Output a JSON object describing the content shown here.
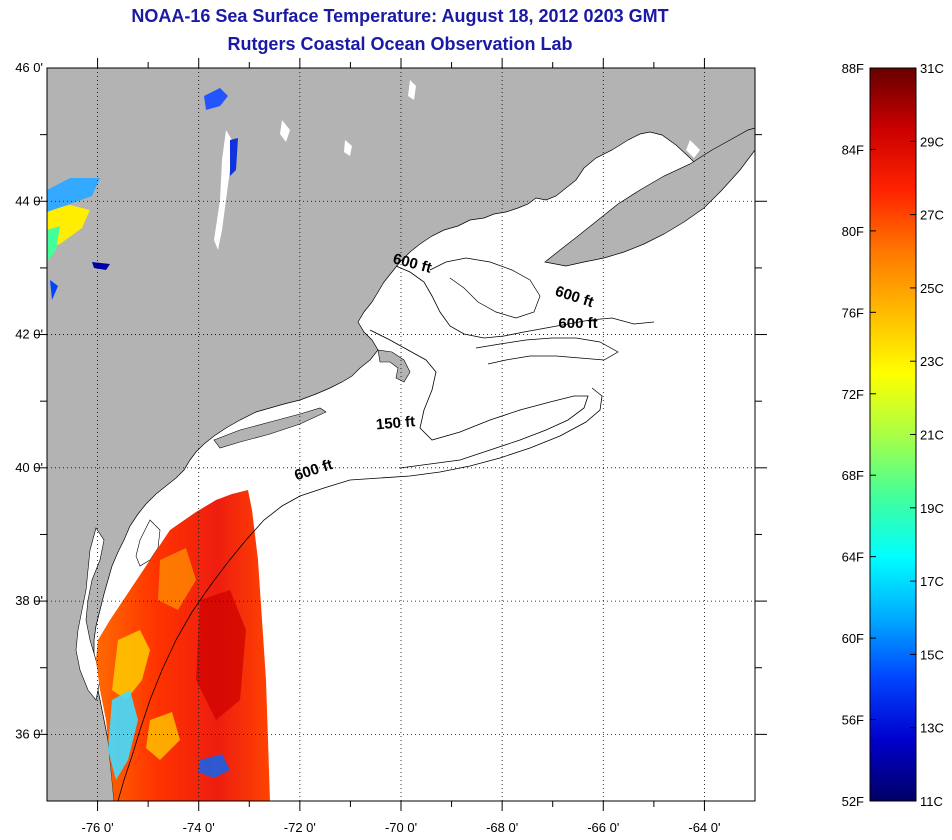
{
  "title_line1": "NOAA-16 Sea Surface Temperature:  August 18, 2012 0203 GMT",
  "title_line2": "Rutgers Coastal Ocean Observation Lab",
  "map": {
    "lon_labels": [
      "-76 0'",
      "-74 0'",
      "-72 0'",
      "-70 0'",
      "-68 0'",
      "-66 0'",
      "-64 0'"
    ],
    "lat_labels": [
      "46 0'",
      "44 0'",
      "42 0'",
      "40 0'",
      "38 0'",
      "36 0'"
    ],
    "lon_range": [
      -77,
      -63
    ],
    "lat_range": [
      35,
      46
    ],
    "land_color": "#b3b3b3",
    "contours": [
      {
        "label": "600 ft",
        "lon": -69.8,
        "lat": 43.0,
        "rotate": 15
      },
      {
        "label": "600 ft",
        "lon": -66.6,
        "lat": 42.5,
        "rotate": 18
      },
      {
        "label": "600 ft",
        "lon": -66.5,
        "lat": 42.1,
        "rotate": 0
      },
      {
        "label": "150 ft",
        "lon": -70.1,
        "lat": 40.6,
        "rotate": -5
      },
      {
        "label": "600 ft",
        "lon": -71.7,
        "lat": 39.9,
        "rotate": -18
      }
    ]
  },
  "colorbar": {
    "fahrenheit": [
      "88F",
      "84F",
      "80F",
      "76F",
      "72F",
      "68F",
      "64F",
      "60F",
      "56F",
      "52F"
    ],
    "celsius": [
      "31C",
      "29C",
      "27C",
      "25C",
      "23C",
      "21C",
      "19C",
      "17C",
      "15C",
      "13C",
      "11C"
    ],
    "gradient": [
      "#660000",
      "#cc0000",
      "#ff2200",
      "#ff7700",
      "#ffbb00",
      "#ffff00",
      "#aaff44",
      "#44ff99",
      "#00ffff",
      "#00aaff",
      "#0044ff",
      "#0000cc",
      "#000066"
    ]
  }
}
